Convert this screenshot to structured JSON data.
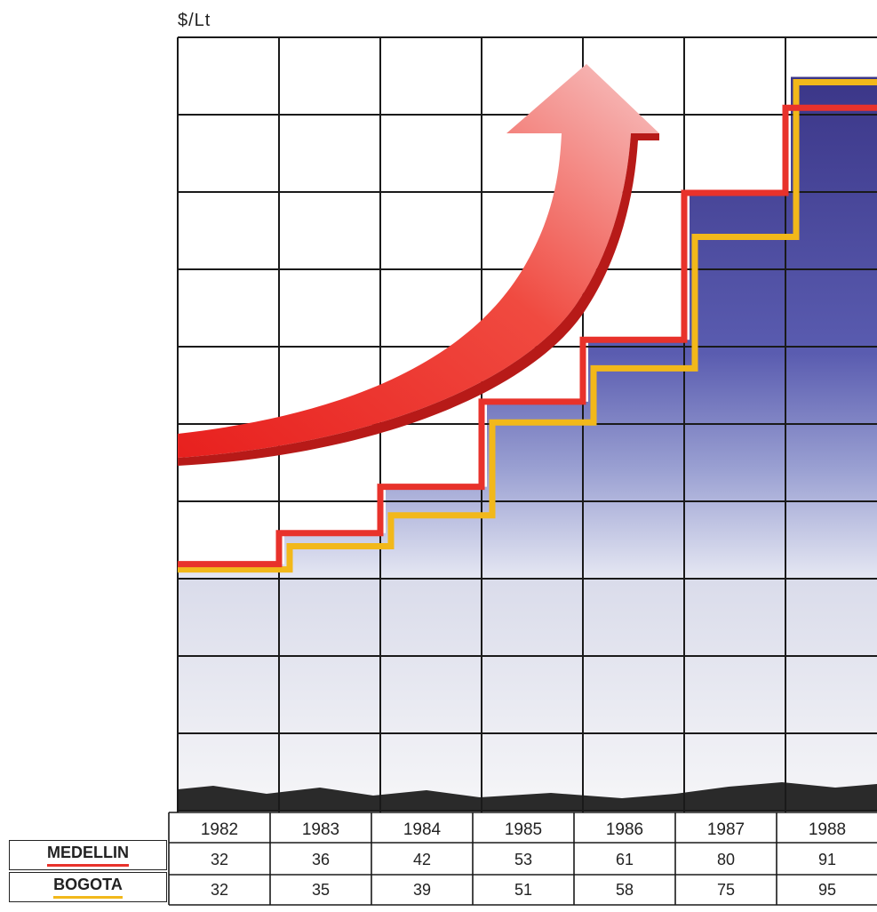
{
  "unit_label": "$/Lt",
  "colors": {
    "medellin": "#e8322b",
    "bogota": "#f2b81a",
    "fill_top": "#3f3a8f",
    "fill_bottom": "#c9cbe3",
    "arrow": "#f0302a",
    "grid": "#1a1a1a"
  },
  "chart_data": {
    "type": "line",
    "style": "step",
    "ylabel": "$/Lt",
    "categories": [
      "1982",
      "1983",
      "1984",
      "1985",
      "1986",
      "1987",
      "1988"
    ],
    "series": [
      {
        "name": "MEDELLIN",
        "values": [
          32,
          36,
          42,
          53,
          61,
          80,
          91
        ]
      },
      {
        "name": "BOGOTA",
        "values": [
          32,
          35,
          39,
          51,
          58,
          75,
          95
        ]
      }
    ],
    "ylim": [
      0,
      100
    ],
    "grid": true,
    "legend": "bottom-left table",
    "decoration": "upward arrow"
  },
  "table": {
    "rows": [
      {
        "label": "MEDELLIN",
        "values": [
          "32",
          "36",
          "42",
          "53",
          "61",
          "80",
          "91"
        ]
      },
      {
        "label": "BOGOTA",
        "values": [
          "32",
          "35",
          "39",
          "51",
          "58",
          "75",
          "95"
        ]
      }
    ]
  }
}
